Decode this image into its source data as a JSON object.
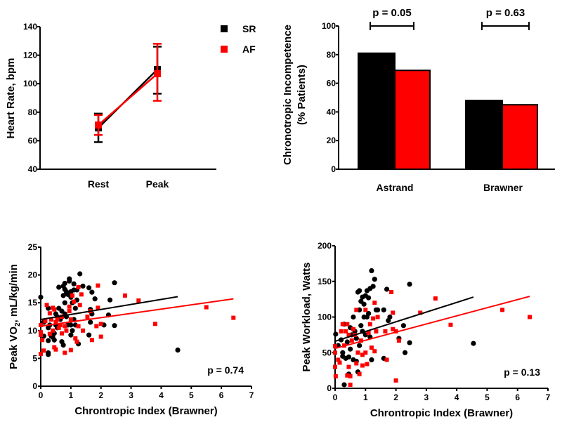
{
  "colors": {
    "sr": "#000000",
    "af": "#ff0000"
  },
  "chart_data": [
    {
      "type": "line",
      "ylabel": "Heart Rate, bpm",
      "categories": [
        "Rest",
        "Peak"
      ],
      "ylim": [
        40,
        140
      ],
      "yticks": [
        "40",
        "60",
        "80",
        "100",
        "120",
        "140"
      ],
      "legend": {
        "placement": "top-right",
        "entries": [
          "SR",
          "AF"
        ]
      },
      "series": [
        {
          "name": "SR",
          "values": [
            69,
            110
          ],
          "err_low": [
            59,
            93
          ],
          "err_high": [
            79,
            126
          ]
        },
        {
          "name": "AF",
          "values": [
            71,
            107
          ],
          "err_low": [
            64,
            88
          ],
          "err_high": [
            78,
            128
          ]
        }
      ]
    },
    {
      "type": "bar",
      "ylabel_lines": [
        "Chronotropic Incompetence",
        "(% Patients)"
      ],
      "categories": [
        "Astrand",
        "Brawner"
      ],
      "ylim": [
        0,
        100
      ],
      "yticks": [
        "0",
        "20",
        "40",
        "60",
        "80",
        "100"
      ],
      "series": [
        {
          "name": "SR",
          "values": [
            81,
            48
          ]
        },
        {
          "name": "AF",
          "values": [
            69,
            45
          ]
        }
      ],
      "annotations": [
        "p = 0.05",
        "p = 0.63"
      ]
    },
    {
      "type": "scatter",
      "ylabel_parts": [
        "Peak VO",
        "2",
        ", mL/kg/min"
      ],
      "xlabel": "Chrontropic Index (Brawner)",
      "xlim": [
        0,
        7
      ],
      "ylim": [
        0,
        25
      ],
      "xticks": [
        "0",
        "1",
        "2",
        "3",
        "4",
        "5",
        "6",
        "7"
      ],
      "yticks": [
        "0",
        "5",
        "10",
        "15",
        "20",
        "25"
      ],
      "annotation": "p = 0.74",
      "fits": [
        {
          "name": "SR",
          "x": [
            0,
            4.55
          ],
          "y": [
            12.0,
            16.1
          ]
        },
        {
          "name": "AF",
          "x": [
            0,
            6.4
          ],
          "y": [
            10.8,
            15.7
          ]
        }
      ],
      "series": [
        {
          "name": "SR",
          "points": [
            [
              0,
              16
            ],
            [
              0.1,
              11.5
            ],
            [
              0.1,
              9
            ],
            [
              0.25,
              14
            ],
            [
              0.25,
              10.5
            ],
            [
              0.25,
              8.2
            ],
            [
              0.25,
              6
            ],
            [
              0.25,
              5.7
            ],
            [
              0.3,
              11
            ],
            [
              0.35,
              9
            ],
            [
              0.4,
              8.8
            ],
            [
              0.45,
              9.5
            ],
            [
              0.45,
              8.3
            ],
            [
              0.5,
              13
            ],
            [
              0.5,
              11
            ],
            [
              0.55,
              12.5
            ],
            [
              0.55,
              10.5
            ],
            [
              0.6,
              17.8
            ],
            [
              0.6,
              14
            ],
            [
              0.65,
              12
            ],
            [
              0.7,
              13.5
            ],
            [
              0.7,
              8
            ],
            [
              0.75,
              18
            ],
            [
              0.75,
              16.3
            ],
            [
              0.75,
              7.4
            ],
            [
              0.8,
              18.5
            ],
            [
              0.8,
              17.4
            ],
            [
              0.8,
              15
            ],
            [
              0.8,
              13
            ],
            [
              0.85,
              17
            ],
            [
              0.85,
              12.5
            ],
            [
              0.9,
              16.5
            ],
            [
              0.9,
              11
            ],
            [
              0.95,
              19.3
            ],
            [
              0.95,
              18.9
            ],
            [
              1.0,
              17
            ],
            [
              1.0,
              16
            ],
            [
              1.0,
              11
            ],
            [
              1.0,
              9.2
            ],
            [
              1.05,
              15
            ],
            [
              1.05,
              10
            ],
            [
              1.1,
              18.4
            ],
            [
              1.1,
              17.3
            ],
            [
              1.1,
              12
            ],
            [
              1.15,
              14
            ],
            [
              1.15,
              11
            ],
            [
              1.2,
              17.3
            ],
            [
              1.2,
              15.5
            ],
            [
              1.25,
              7.6
            ],
            [
              1.3,
              20.2
            ],
            [
              1.4,
              18
            ],
            [
              1.6,
              17.7
            ],
            [
              1.6,
              9.2
            ],
            [
              1.65,
              13.8
            ],
            [
              1.65,
              11.5
            ],
            [
              1.7,
              16.9
            ],
            [
              1.7,
              13
            ],
            [
              1.8,
              15.7
            ],
            [
              2.1,
              11
            ],
            [
              2.25,
              12.8
            ],
            [
              2.3,
              15.5
            ],
            [
              2.45,
              18.6
            ],
            [
              2.45,
              10.9
            ],
            [
              4.55,
              6.5
            ]
          ]
        },
        {
          "name": "AF",
          "points": [
            [
              0,
              11
            ],
            [
              0,
              9.7
            ],
            [
              0,
              9.2
            ],
            [
              0,
              5.8
            ],
            [
              0.05,
              8.3
            ],
            [
              0.1,
              6.4
            ],
            [
              0.15,
              11.7
            ],
            [
              0.2,
              14.6
            ],
            [
              0.3,
              13.1
            ],
            [
              0.3,
              9.4
            ],
            [
              0.35,
              12
            ],
            [
              0.4,
              14.1
            ],
            [
              0.4,
              10
            ],
            [
              0.45,
              13.8
            ],
            [
              0.45,
              7
            ],
            [
              0.5,
              11.5
            ],
            [
              0.5,
              6.6
            ],
            [
              0.55,
              12
            ],
            [
              0.6,
              10.5
            ],
            [
              0.65,
              11
            ],
            [
              0.7,
              12.5
            ],
            [
              0.7,
              9.5
            ],
            [
              0.8,
              6
            ],
            [
              0.8,
              10.8
            ],
            [
              0.85,
              10
            ],
            [
              0.95,
              14.3
            ],
            [
              0.95,
              13.5
            ],
            [
              1.0,
              6.5
            ],
            [
              1.0,
              12
            ],
            [
              1.05,
              16.3
            ],
            [
              1.1,
              15.2
            ],
            [
              1.15,
              8.6
            ],
            [
              1.2,
              8
            ],
            [
              1.25,
              17.8
            ],
            [
              1.25,
              10.8
            ],
            [
              1.3,
              14.6
            ],
            [
              1.35,
              16.5
            ],
            [
              1.4,
              10
            ],
            [
              1.55,
              12.5
            ],
            [
              1.65,
              13.5
            ],
            [
              1.7,
              8.3
            ],
            [
              1.85,
              10.8
            ],
            [
              1.9,
              18.1
            ],
            [
              1.9,
              14.1
            ],
            [
              2.0,
              8.9
            ],
            [
              2.0,
              11.2
            ],
            [
              2.8,
              16.3
            ],
            [
              3.25,
              15.4
            ],
            [
              3.8,
              11.2
            ],
            [
              5.5,
              14.2
            ],
            [
              6.4,
              12.3
            ]
          ]
        }
      ]
    },
    {
      "type": "scatter",
      "ylabel": "Peak Workload, Watts",
      "xlabel": "Chrontropic Index (Brawner)",
      "xlim": [
        0,
        7
      ],
      "ylim": [
        0,
        200
      ],
      "xticks": [
        "0",
        "1",
        "2",
        "3",
        "4",
        "5",
        "6",
        "7"
      ],
      "yticks": [
        "0",
        "50",
        "100",
        "150",
        "200"
      ],
      "annotation": "p = 0.13",
      "fits": [
        {
          "name": "SR",
          "x": [
            0,
            4.55
          ],
          "y": [
            66,
            128
          ]
        },
        {
          "name": "AF",
          "x": [
            0,
            6.4
          ],
          "y": [
            56,
            129
          ]
        }
      ],
      "series": [
        {
          "name": "SR",
          "points": [
            [
              0.02,
              76
            ],
            [
              0.1,
              60
            ],
            [
              0.2,
              68
            ],
            [
              0.25,
              50
            ],
            [
              0.25,
              45
            ],
            [
              0.3,
              5
            ],
            [
              0.3,
              90
            ],
            [
              0.35,
              42
            ],
            [
              0.4,
              65
            ],
            [
              0.45,
              44
            ],
            [
              0.45,
              20
            ],
            [
              0.5,
              85
            ],
            [
              0.5,
              55
            ],
            [
              0.55,
              75
            ],
            [
              0.6,
              100
            ],
            [
              0.6,
              40
            ],
            [
              0.65,
              80
            ],
            [
              0.7,
              70
            ],
            [
              0.7,
              38
            ],
            [
              0.75,
              135
            ],
            [
              0.75,
              23
            ],
            [
              0.8,
              137
            ],
            [
              0.8,
              110
            ],
            [
              0.8,
              60
            ],
            [
              0.85,
              122
            ],
            [
              0.85,
              88
            ],
            [
              0.9,
              128
            ],
            [
              0.9,
              80
            ],
            [
              0.95,
              100
            ],
            [
              0.95,
              118
            ],
            [
              1.0,
              130
            ],
            [
              1.0,
              75
            ],
            [
              1.05,
              137
            ],
            [
              1.05,
              100
            ],
            [
              1.1,
              127
            ],
            [
              1.1,
              105
            ],
            [
              1.15,
              140
            ],
            [
              1.15,
              72
            ],
            [
              1.2,
              165
            ],
            [
              1.2,
              40
            ],
            [
              1.25,
              143
            ],
            [
              1.3,
              153
            ],
            [
              1.35,
              110
            ],
            [
              1.4,
              110
            ],
            [
              1.6,
              110
            ],
            [
              1.6,
              42
            ],
            [
              1.7,
              139
            ],
            [
              1.75,
              95
            ],
            [
              1.8,
              100
            ],
            [
              2.1,
              70
            ],
            [
              2.25,
              88
            ],
            [
              2.3,
              50
            ],
            [
              2.45,
              146
            ],
            [
              2.45,
              64
            ],
            [
              4.55,
              63
            ]
          ]
        },
        {
          "name": "AF",
          "points": [
            [
              0,
              59
            ],
            [
              0,
              50
            ],
            [
              0,
              30
            ],
            [
              0.02,
              17
            ],
            [
              0.1,
              40
            ],
            [
              0.15,
              36
            ],
            [
              0.2,
              80
            ],
            [
              0.25,
              90
            ],
            [
              0.3,
              60
            ],
            [
              0.35,
              80
            ],
            [
              0.4,
              90
            ],
            [
              0.4,
              18
            ],
            [
              0.45,
              30
            ],
            [
              0.45,
              75
            ],
            [
              0.5,
              5
            ],
            [
              0.5,
              17
            ],
            [
              0.55,
              67
            ],
            [
              0.6,
              83
            ],
            [
              0.65,
              75
            ],
            [
              0.7,
              110
            ],
            [
              0.7,
              35
            ],
            [
              0.75,
              50
            ],
            [
              0.8,
              20
            ],
            [
              0.85,
              67
            ],
            [
              0.9,
              47
            ],
            [
              0.9,
              32
            ],
            [
              1.0,
              110
            ],
            [
              1.0,
              50
            ],
            [
              1.05,
              34
            ],
            [
              1.1,
              78
            ],
            [
              1.15,
              90
            ],
            [
              1.2,
              57
            ],
            [
              1.25,
              98
            ],
            [
              1.3,
              120
            ],
            [
              1.3,
              52
            ],
            [
              1.35,
              80
            ],
            [
              1.4,
              100
            ],
            [
              1.65,
              80
            ],
            [
              1.7,
              40
            ],
            [
              1.85,
              135
            ],
            [
              1.9,
              106
            ],
            [
              1.9,
              83
            ],
            [
              2.0,
              11
            ],
            [
              2.0,
              80
            ],
            [
              2.1,
              67
            ],
            [
              2.8,
              106
            ],
            [
              3.3,
              126
            ],
            [
              3.8,
              89
            ],
            [
              5.5,
              110
            ],
            [
              6.4,
              100
            ]
          ]
        }
      ]
    }
  ]
}
